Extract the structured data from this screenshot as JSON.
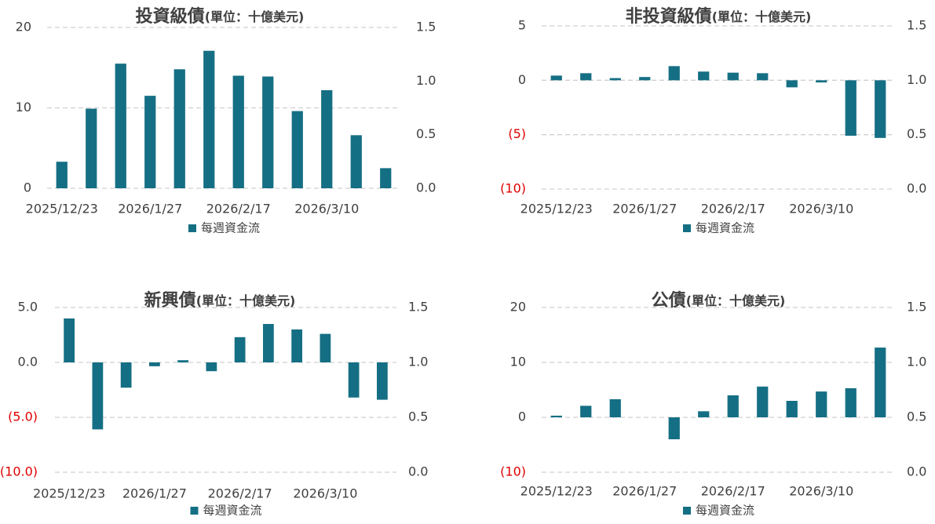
{
  "chart_data": [
    {
      "type": "bar",
      "title": "投資級債",
      "unit": "(單位：十億美元)",
      "categories": [
        "2025/12/23",
        null,
        null,
        "2026/1/27",
        null,
        null,
        "2026/2/17",
        null,
        null,
        "2026/3/10",
        null,
        null
      ],
      "series": [
        {
          "name": "每週資金流",
          "color": "#156f84",
          "values": [
            3.3,
            9.9,
            15.5,
            11.5,
            14.8,
            17.1,
            14.0,
            13.9,
            9.6,
            12.2,
            6.6,
            2.5
          ]
        }
      ],
      "ylim": [
        0,
        20
      ],
      "yticks": [
        0,
        10,
        20
      ],
      "y2lim": [
        0,
        1.5
      ],
      "y2ticks": [
        {
          "value": 0,
          "label": "0.0"
        },
        {
          "value": 0.5,
          "label": "0.5"
        },
        {
          "value": 1,
          "label": "1.0"
        },
        {
          "value": 1.5,
          "label": "1.5"
        }
      ],
      "grid": true,
      "negative_label_color": "#e00000"
    },
    {
      "type": "bar",
      "title": "非投資級債",
      "unit": "(單位：十億美元)",
      "categories": [
        "2025/12/23",
        null,
        null,
        "2026/1/27",
        null,
        null,
        "2026/2/17",
        null,
        null,
        "2026/3/10",
        null,
        null
      ],
      "series": [
        {
          "name": "每週資金流",
          "color": "#156f84",
          "values": [
            0.43,
            0.65,
            0.2,
            0.3,
            1.3,
            0.8,
            0.7,
            0.65,
            -0.65,
            -0.2,
            -5.1,
            -5.3
          ]
        }
      ],
      "ylim": [
        -10,
        5
      ],
      "yticks": [
        {
          "value": -10,
          "label": "(10)"
        },
        {
          "value": -5,
          "label": "(5)"
        },
        0,
        5
      ],
      "y2lim": [
        0,
        1.5
      ],
      "y2ticks": [
        {
          "value": 0,
          "label": "0.0"
        },
        {
          "value": 0.5,
          "label": "0.5"
        },
        {
          "value": 1,
          "label": "1.0"
        },
        {
          "value": 1.5,
          "label": "1.5"
        }
      ],
      "grid": true,
      "negative_label_color": "#e00000"
    },
    {
      "type": "bar",
      "title": "新興債",
      "unit": "(單位：十億美元)",
      "categories": [
        "2025/12/23",
        null,
        null,
        "2026/1/27",
        null,
        null,
        "2026/2/17",
        null,
        null,
        "2026/3/10",
        null,
        null
      ],
      "series": [
        {
          "name": "每週資金流",
          "color": "#156f84",
          "values": [
            4.0,
            -6.1,
            -2.3,
            -0.35,
            0.2,
            -0.8,
            2.3,
            3.5,
            3.0,
            2.6,
            -3.2,
            -3.4
          ]
        }
      ],
      "ylim": [
        -10,
        5
      ],
      "yticks": [
        {
          "value": -10,
          "label": "(10.0)"
        },
        {
          "value": -5,
          "label": "(5.0)"
        },
        {
          "value": 0,
          "label": "0.0"
        },
        {
          "value": 5,
          "label": "5.0"
        }
      ],
      "y2lim": [
        0,
        1.5
      ],
      "y2ticks": [
        {
          "value": 0,
          "label": "0.0"
        },
        {
          "value": 0.5,
          "label": "0.5"
        },
        {
          "value": 1,
          "label": "1.0"
        },
        {
          "value": 1.5,
          "label": "1.5"
        }
      ],
      "grid": true,
      "negative_label_color": "#e00000"
    },
    {
      "type": "bar",
      "title": "公債",
      "unit": "(單位：十億美元)",
      "categories": [
        "2025/12/23",
        null,
        null,
        "2026/1/27",
        null,
        null,
        "2026/2/17",
        null,
        null,
        "2026/3/10",
        null,
        null
      ],
      "series": [
        {
          "name": "每週資金流",
          "color": "#156f84",
          "values": [
            0.3,
            2.1,
            3.3,
            0,
            -4.0,
            1.1,
            4.0,
            5.6,
            3.0,
            4.7,
            5.3,
            12.7
          ]
        }
      ],
      "ylim": [
        -10,
        20
      ],
      "yticks": [
        {
          "value": -10,
          "label": "(10)"
        },
        0,
        10,
        20
      ],
      "y2lim": [
        0,
        1.5
      ],
      "y2ticks": [
        {
          "value": 0,
          "label": "0.0"
        },
        {
          "value": 0.5,
          "label": "0.5"
        },
        {
          "value": 1,
          "label": "1.0"
        },
        {
          "value": 1.5,
          "label": "1.5"
        }
      ],
      "grid": true,
      "negative_label_color": "#e00000"
    }
  ]
}
